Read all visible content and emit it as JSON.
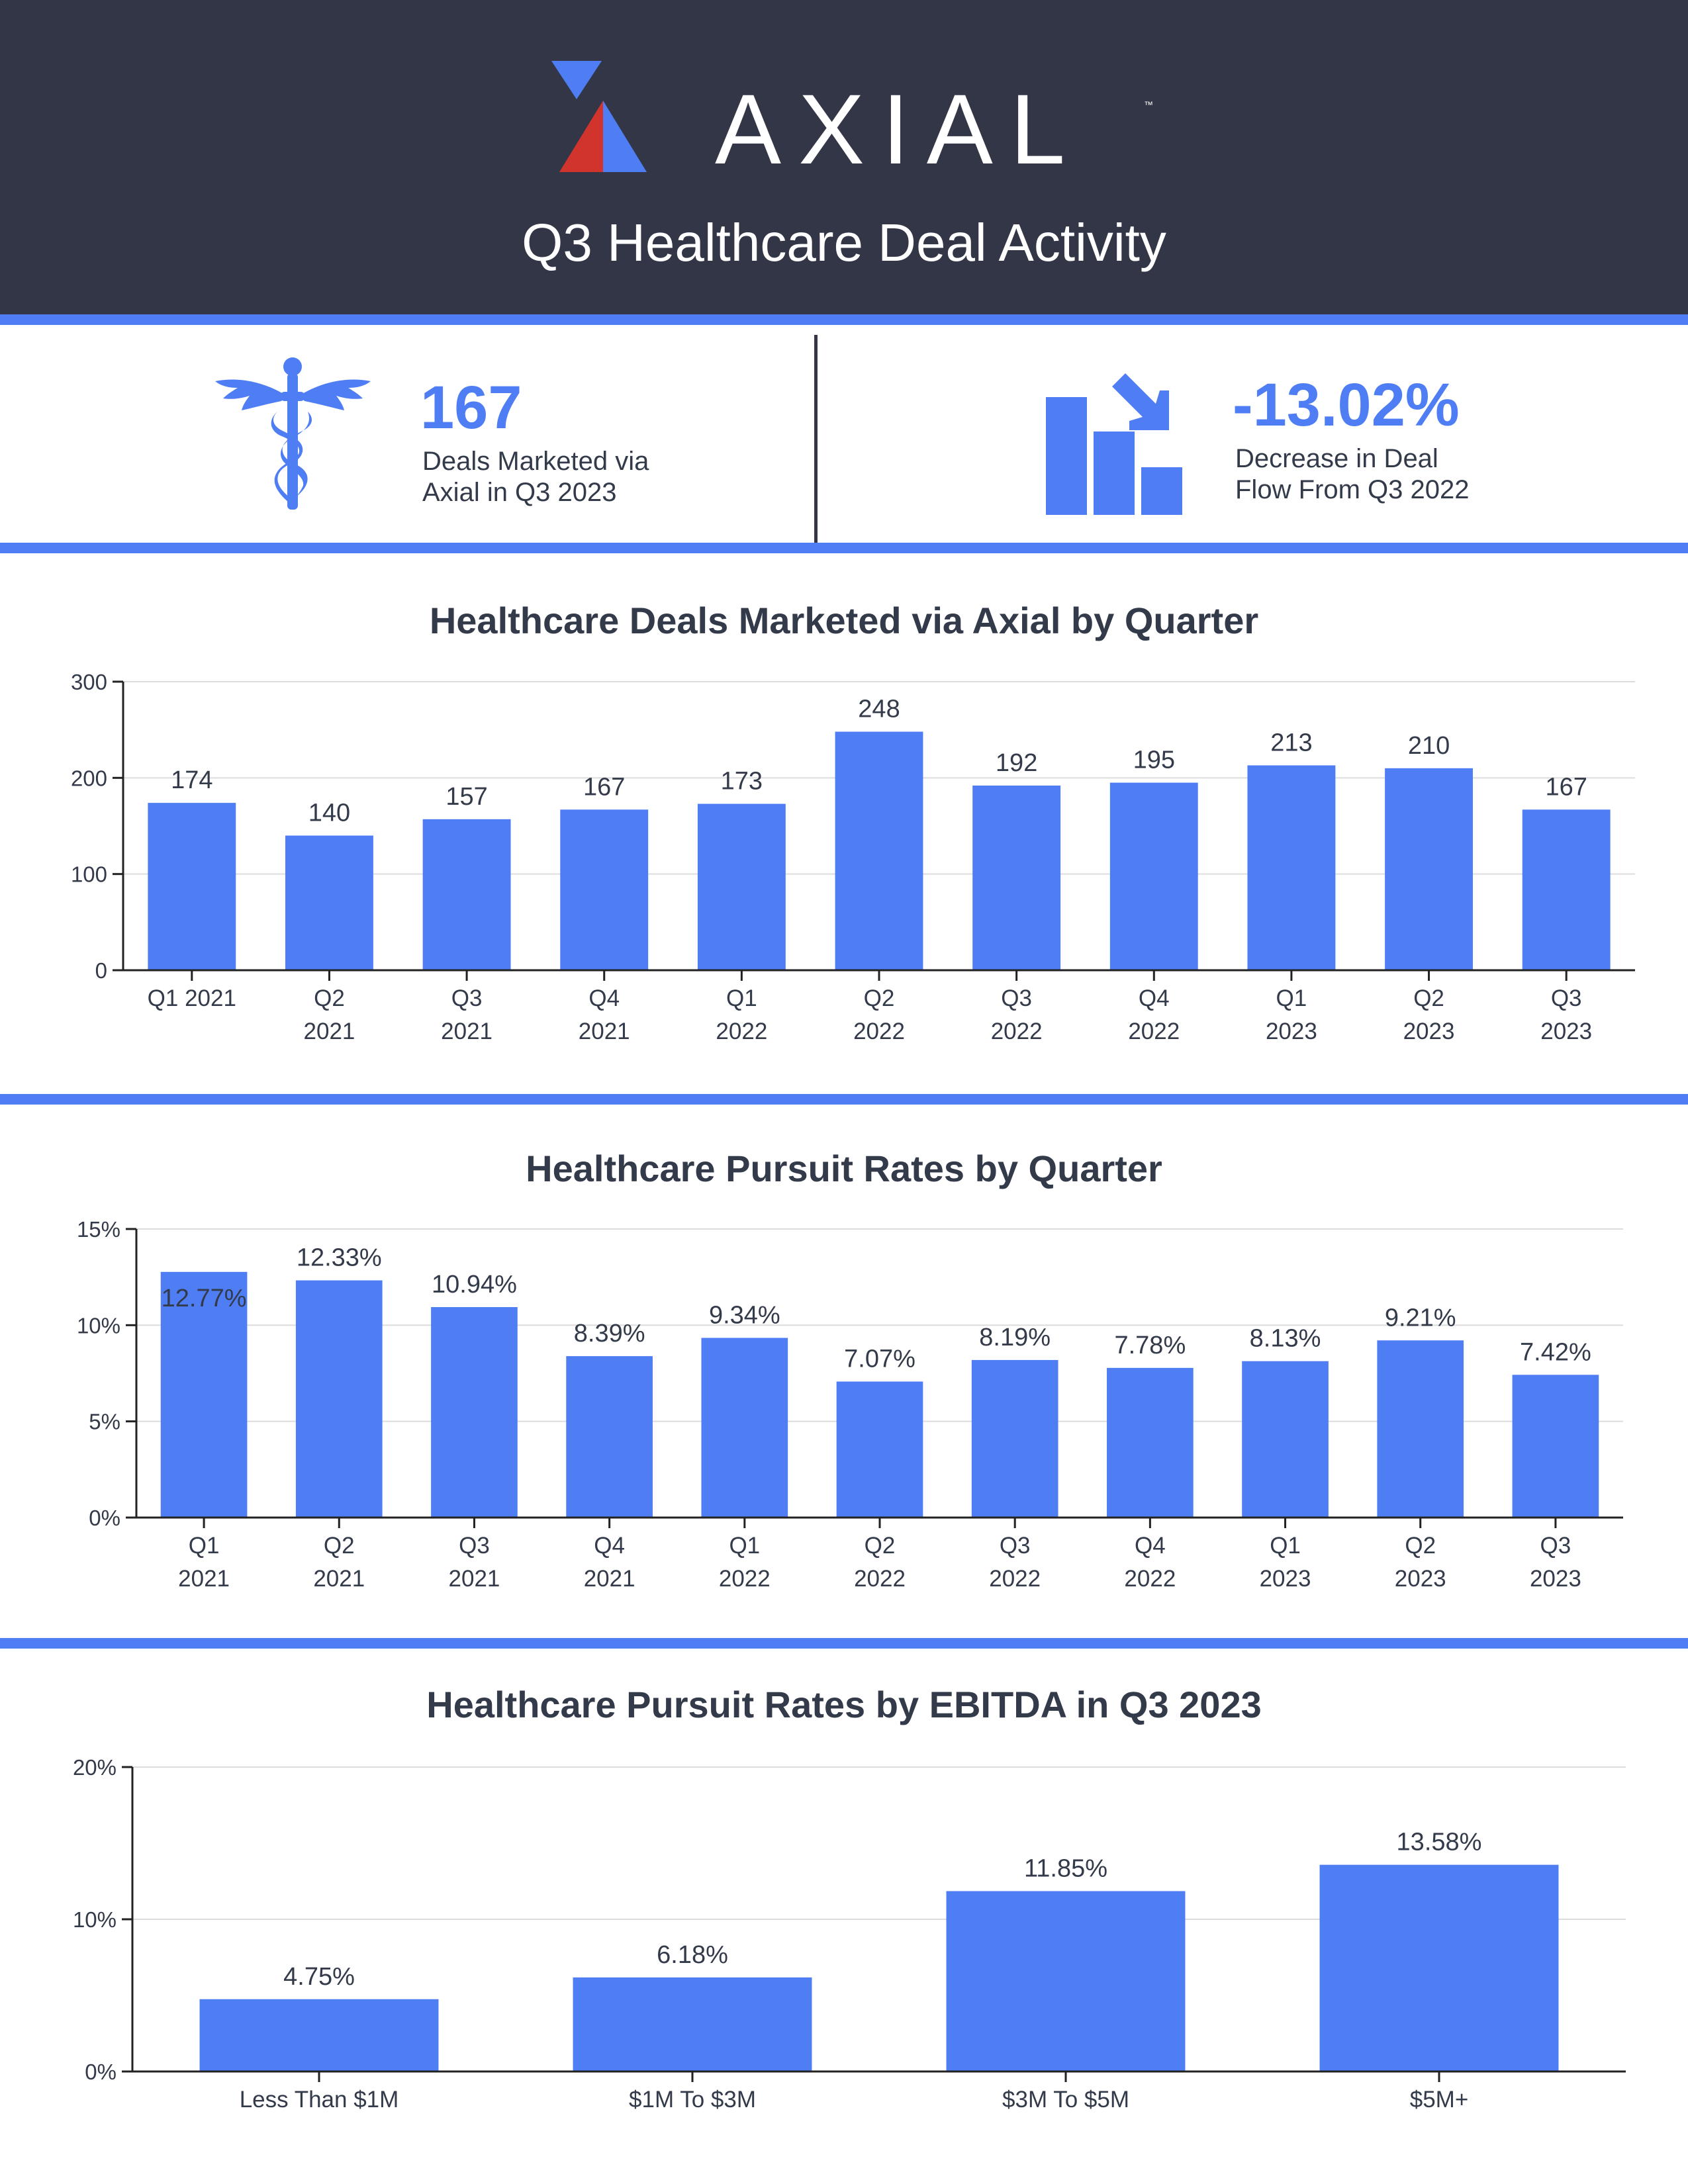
{
  "header": {
    "brand": "AXIAL",
    "trademark": "™",
    "title": "Q3 Healthcare Deal Activity",
    "colors": {
      "background": "#333646",
      "accent": "#4f7ef4",
      "logo_red": "#d1342c"
    }
  },
  "stats": [
    {
      "icon": "caduceus-icon",
      "value": "167",
      "label_line1": "Deals Marketed via",
      "label_line2": "Axial in Q3 2023"
    },
    {
      "icon": "declining-bar-chart-icon",
      "value": "-13.02%",
      "label_line1": "Decrease in Deal",
      "label_line2": "Flow From Q3 2022"
    }
  ],
  "chart_data": [
    {
      "type": "bar",
      "title": "Healthcare Deals Marketed via Axial by Quarter",
      "categories": [
        [
          "Q1 2021"
        ],
        [
          "Q2",
          "2021"
        ],
        [
          "Q3",
          "2021"
        ],
        [
          "Q4",
          "2021"
        ],
        [
          "Q1",
          "2022"
        ],
        [
          "Q2",
          "2022"
        ],
        [
          "Q3",
          "2022"
        ],
        [
          "Q4",
          "2022"
        ],
        [
          "Q1",
          "2023"
        ],
        [
          "Q2",
          "2023"
        ],
        [
          "Q3",
          "2023"
        ]
      ],
      "values": [
        174,
        140,
        157,
        167,
        173,
        248,
        192,
        195,
        213,
        210,
        167
      ],
      "labels": [
        "174",
        "140",
        "157",
        "167",
        "173",
        "248",
        "192",
        "195",
        "213",
        "210",
        "167"
      ],
      "ylim": [
        0,
        300
      ],
      "yticks": [
        0,
        100,
        200,
        300
      ],
      "ytick_labels": [
        "0",
        "100",
        "200",
        "300"
      ],
      "grid": true,
      "color": "#4f7ef4"
    },
    {
      "type": "bar",
      "title": "Healthcare Pursuit Rates by Quarter",
      "categories": [
        [
          "Q1",
          "2021"
        ],
        [
          "Q2",
          "2021"
        ],
        [
          "Q3",
          "2021"
        ],
        [
          "Q4",
          "2021"
        ],
        [
          "Q1",
          "2022"
        ],
        [
          "Q2",
          "2022"
        ],
        [
          "Q3",
          "2022"
        ],
        [
          "Q4",
          "2022"
        ],
        [
          "Q1",
          "2023"
        ],
        [
          "Q2",
          "2023"
        ],
        [
          "Q3",
          "2023"
        ]
      ],
      "values": [
        12.77,
        12.33,
        10.94,
        8.39,
        9.34,
        7.07,
        8.19,
        7.78,
        8.13,
        9.21,
        7.42
      ],
      "labels": [
        "12.77%",
        "12.33%",
        "10.94%",
        "8.39%",
        "9.34%",
        "7.07%",
        "8.19%",
        "7.78%",
        "8.13%",
        "9.21%",
        "7.42%"
      ],
      "ylim": [
        0,
        15
      ],
      "yticks": [
        0,
        5,
        10,
        15
      ],
      "ytick_labels": [
        "0%",
        "5%",
        "10%",
        "15%"
      ],
      "grid": true,
      "color": "#4f7ef4"
    },
    {
      "type": "bar",
      "title": "Healthcare Pursuit Rates by EBITDA in Q3 2023",
      "categories": [
        [
          "Less Than $1M"
        ],
        [
          "$1M To $3M"
        ],
        [
          "$3M To $5M"
        ],
        [
          "$5M+"
        ]
      ],
      "values": [
        4.75,
        6.18,
        11.85,
        13.58
      ],
      "labels": [
        "4.75%",
        "6.18%",
        "11.85%",
        "13.58%"
      ],
      "ylim": [
        0,
        20
      ],
      "yticks": [
        0,
        10,
        20
      ],
      "ytick_labels": [
        "0%",
        "10%",
        "20%"
      ],
      "grid": true,
      "color": "#4f7ef4"
    }
  ]
}
